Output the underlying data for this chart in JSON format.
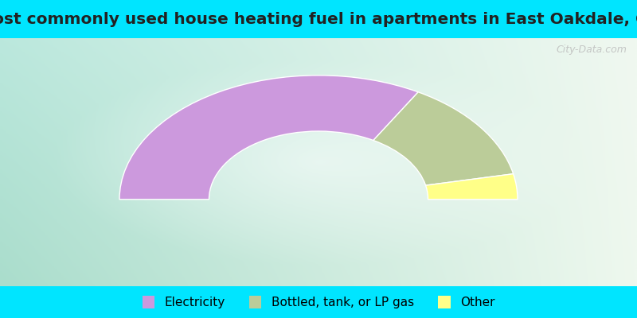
{
  "title": "Most commonly used house heating fuel in apartments in East Oakdale, CA",
  "categories": [
    "Electricity",
    "Bottled, tank, or LP gas",
    "Other"
  ],
  "values": [
    66.7,
    26.7,
    6.6
  ],
  "colors": [
    "#cc99dd",
    "#bbcc99",
    "#ffff88"
  ],
  "bg_top": "#00e5ff",
  "title_fontsize": 14.5,
  "legend_fontsize": 11,
  "watermark": "City-Data.com",
  "outer_r": 1.0,
  "inner_r": 0.55
}
